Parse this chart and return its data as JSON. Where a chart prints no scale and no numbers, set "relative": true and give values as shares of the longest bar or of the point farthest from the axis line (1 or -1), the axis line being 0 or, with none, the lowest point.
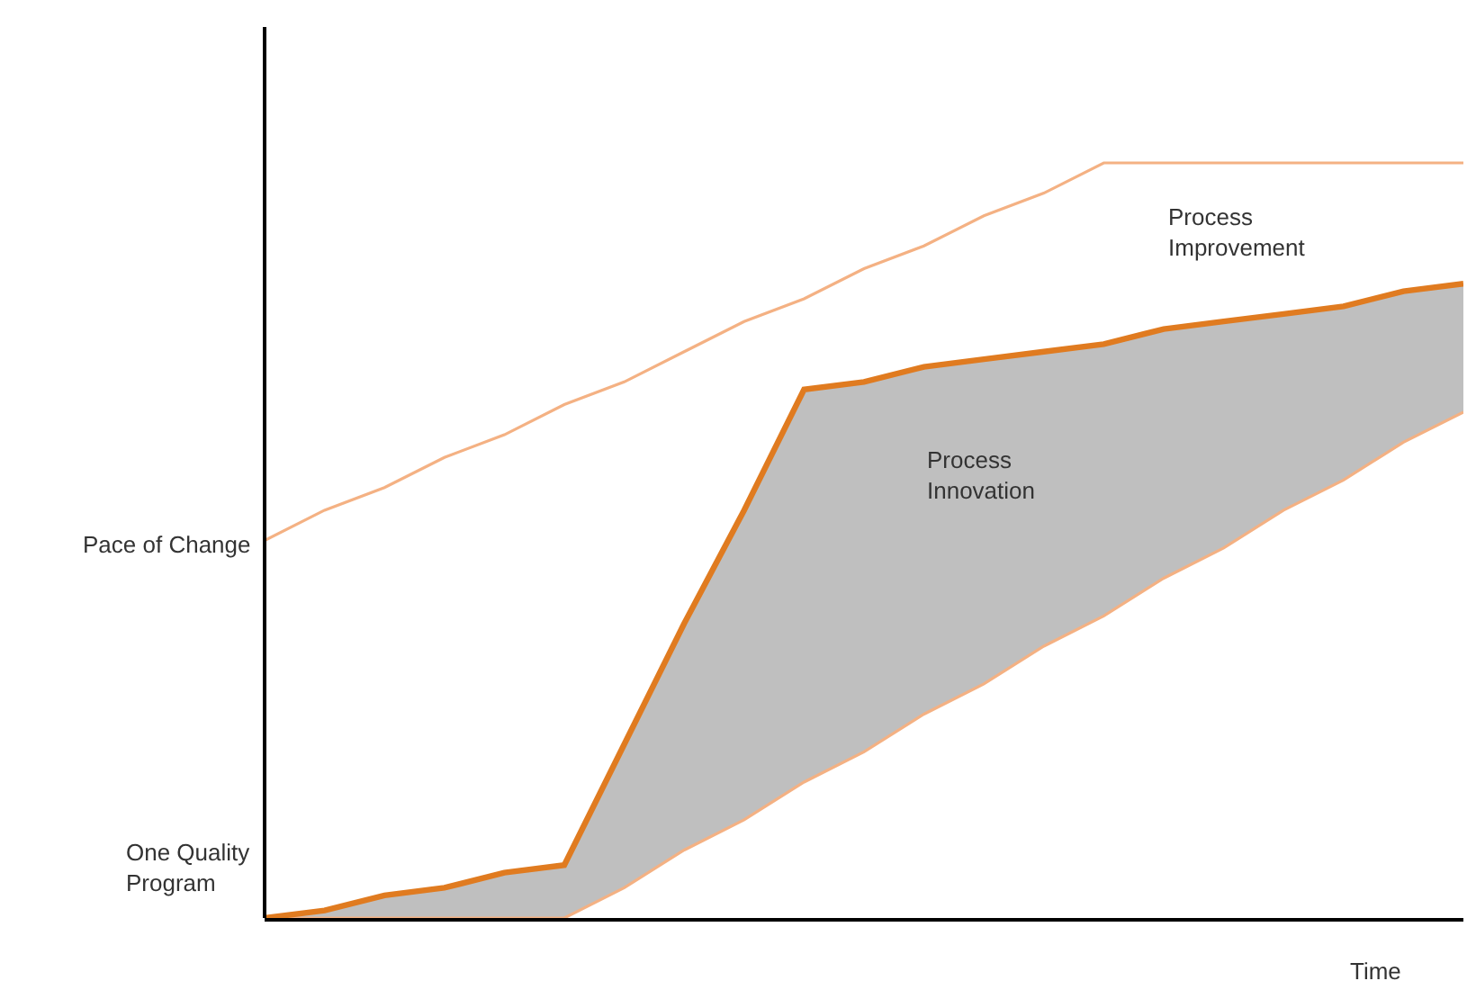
{
  "chart_data": {
    "type": "line",
    "relative": true,
    "xlabel": "Time",
    "ylabel": "Pace of Change",
    "categories": [
      null,
      null,
      null,
      null,
      null,
      null,
      null,
      null,
      null,
      null,
      null,
      null,
      null,
      null,
      null,
      null,
      null,
      null,
      null,
      null,
      null
    ],
    "annotations": [
      "One Quality Program"
    ],
    "series": [
      {
        "name": "Process Improvement",
        "color": "#f4b183",
        "values": [
          0.5,
          0.54,
          0.57,
          0.61,
          0.64,
          0.68,
          0.71,
          0.75,
          0.79,
          0.82,
          0.86,
          0.89,
          0.93,
          0.96,
          1,
          1,
          1,
          1,
          1,
          1,
          1
        ]
      },
      {
        "color": "#f4b183",
        "values": [
          0,
          0,
          0,
          0,
          0,
          0,
          0.04,
          0.09,
          0.13,
          0.18,
          0.22,
          0.27,
          0.31,
          0.36,
          0.4,
          0.45,
          0.49,
          0.54,
          0.58,
          0.63,
          0.67
        ]
      },
      {
        "name": "Process Innovation",
        "type": "area",
        "color": "#e07b20",
        "values": [
          0,
          0.01,
          0.03,
          0.04,
          0.06,
          0.07,
          0.23,
          0.39,
          0.54,
          0.7,
          0.71,
          0.73,
          0.74,
          0.75,
          0.76,
          0.78,
          0.79,
          0.8,
          0.81,
          0.83,
          0.84
        ]
      }
    ],
    "legend": false
  }
}
